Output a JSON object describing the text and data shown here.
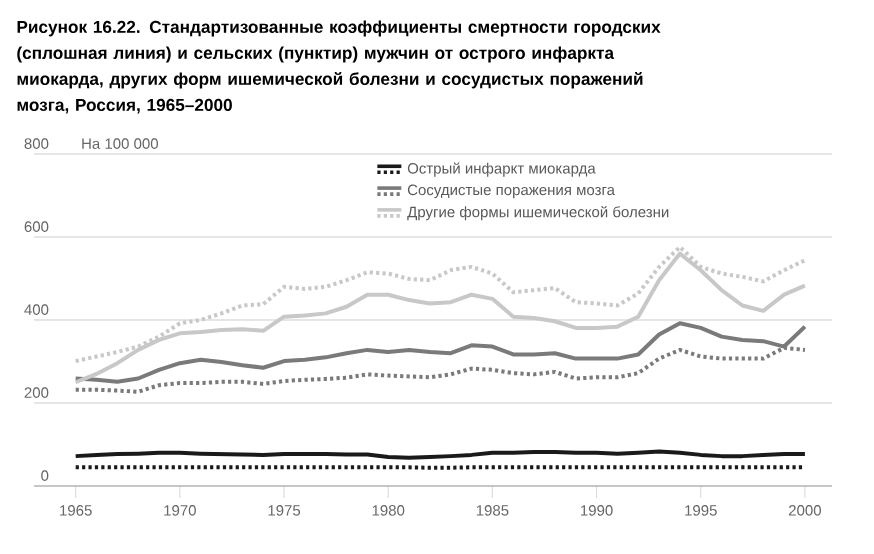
{
  "chart_data": {
    "type": "line",
    "title": "Рисунок 16.22. Стандартизованные коэффициенты смертности городских (сплошная линия) и сельских (пунктир) мужчин от острого инфаркта миокарда, других форм ишемической болезни и сосудистых поражений мозга, Россия, 1965–2000",
    "ylabel": "На 100 000",
    "x": [
      1965,
      1966,
      1967,
      1968,
      1969,
      1970,
      1971,
      1972,
      1973,
      1974,
      1975,
      1976,
      1977,
      1978,
      1979,
      1980,
      1981,
      1982,
      1983,
      1984,
      1985,
      1986,
      1987,
      1988,
      1989,
      1990,
      1991,
      1992,
      1993,
      1994,
      1995,
      1996,
      1997,
      1998,
      1999,
      2000
    ],
    "series": [
      {
        "name": "Острый инфаркт миокарда",
        "color": "#1a1a1a",
        "line_style": "solid",
        "values": [
          72,
          75,
          77,
          78,
          80,
          80,
          78,
          77,
          76,
          75,
          77,
          77,
          77,
          76,
          76,
          70,
          68,
          70,
          72,
          75,
          80,
          80,
          82,
          82,
          80,
          80,
          78,
          80,
          83,
          80,
          75,
          72,
          72,
          75,
          77,
          77
        ]
      },
      {
        "color": "#1a1a1a",
        "line_style": "dotted",
        "values": [
          45,
          45,
          45,
          45,
          45,
          45,
          45,
          45,
          45,
          45,
          45,
          45,
          45,
          45,
          45,
          45,
          45,
          44,
          44,
          45,
          45,
          45,
          45,
          45,
          45,
          45,
          45,
          45,
          45,
          45,
          45,
          45,
          45,
          45,
          45,
          45
        ]
      },
      {
        "name": "Сосудистые поражения мозга",
        "color": "#7a7a7a",
        "line_style": "solid",
        "values": [
          259,
          256,
          251,
          259,
          280,
          296,
          304,
          299,
          291,
          285,
          301,
          304,
          310,
          320,
          328,
          323,
          328,
          323,
          320,
          339,
          336,
          317,
          317,
          320,
          307,
          307,
          307,
          317,
          365,
          392,
          381,
          360,
          352,
          349,
          336,
          384
        ]
      },
      {
        "color": "#7a7a7a",
        "line_style": "dotted",
        "values": [
          232,
          232,
          230,
          227,
          243,
          248,
          248,
          251,
          251,
          246,
          253,
          256,
          258,
          261,
          269,
          266,
          264,
          262,
          269,
          283,
          280,
          272,
          269,
          275,
          259,
          262,
          262,
          272,
          307,
          328,
          312,
          307,
          307,
          307,
          333,
          328
        ]
      },
      {
        "name": "Другие формы ишемической болезни",
        "color": "#c8c8c8",
        "line_style": "solid",
        "values": [
          250,
          270,
          296,
          328,
          352,
          368,
          371,
          376,
          378,
          374,
          408,
          411,
          416,
          432,
          461,
          461,
          448,
          440,
          443,
          461,
          451,
          408,
          405,
          397,
          381,
          381,
          384,
          408,
          496,
          560,
          520,
          472,
          435,
          422,
          461,
          483
        ]
      },
      {
        "color": "#c8c8c8",
        "line_style": "dotted",
        "values": [
          301,
          312,
          323,
          336,
          360,
          392,
          400,
          416,
          435,
          438,
          480,
          475,
          480,
          496,
          515,
          512,
          499,
          496,
          520,
          528,
          512,
          467,
          472,
          477,
          443,
          440,
          435,
          464,
          528,
          576,
          528,
          512,
          504,
          493,
          520,
          544
        ]
      }
    ],
    "xlim": [
      1963,
      2001.3
    ],
    "ylim": [
      0,
      800
    ],
    "xticks": [
      1965,
      1970,
      1975,
      1980,
      1985,
      1990,
      1995,
      2000
    ],
    "yticks": [
      0,
      200,
      400,
      600,
      800
    ],
    "grid": "y",
    "legend": "top"
  }
}
